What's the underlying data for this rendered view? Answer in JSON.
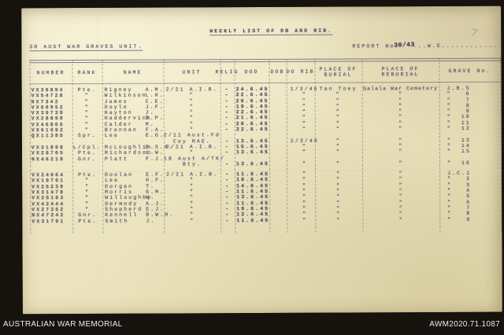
{
  "theme": {
    "bg": "#16120e",
    "paper": "#ebe3bd",
    "ink": "#524d68",
    "footer-text": "#ececec"
  },
  "footer": {
    "institution": "AUSTRALIAN WAR MEMORIAL",
    "accession": "AWM2020.71.1087"
  },
  "document": {
    "title": "WEEKLY LIST OF DB AND RIB.",
    "unit_heading": "30 AUST WAR GRAVES UNIT.",
    "report_label": "REPORT No",
    "report_number": "30/43",
    "report_suffix": "...W.E............",
    "pencil_mark": "7",
    "columns": [
      {
        "l1": "NUMBER"
      },
      {
        "l1": "RANK"
      },
      {
        "l1": "NAME"
      },
      {
        "l1": "UNIT"
      },
      {
        "l1": "RELIG"
      },
      {
        "l1": "DOD"
      },
      {
        "l1": "DOB"
      },
      {
        "l1": "DO RIB"
      },
      {
        "l1": "PLACE OF",
        "l2": "BURIAL"
      },
      {
        "l1": "PLACE OF",
        "l2": "REBURIAL"
      },
      {
        "l1": "GRAVE No."
      }
    ],
    "rows": [
      {
        "number": "VX30894",
        "rank": "Pte.",
        "name": "Rigney",
        "initials": "A.M.",
        "unit": "2/21 A.I.B.",
        "relig": "-",
        "dod": "24.6.45",
        "dob": "",
        "dorib": "1/3/46",
        "burial": "Tan Toey",
        "reburial": "Galala War Cemetery",
        "grave_prefix": "J.B.",
        "grave_num": "5"
      },
      {
        "number": "VX54728",
        "rank": "\"",
        "name": "Wilkinson",
        "initials": "L.H.",
        "unit": "\"",
        "relig": "-",
        "dod": "22.6.45",
        "dob": "",
        "dorib": "\"",
        "burial": "\"",
        "reburial": "\"",
        "grave_prefix": "\"",
        "grave_num": "6"
      },
      {
        "number": "NX7342",
        "rank": "\"",
        "name": "James",
        "initials": "C.E.",
        "unit": "\"",
        "relig": "-",
        "dod": "20.6.45",
        "dob": "",
        "dorib": "\"",
        "burial": "\"",
        "reburial": "\"",
        "grave_prefix": "\"",
        "grave_num": "7"
      },
      {
        "number": "VX60952",
        "rank": "\"",
        "name": "Doyle",
        "initials": "J.F.",
        "unit": "\"",
        "relig": "-",
        "dod": "19.6.45",
        "dob": "",
        "dorib": "\"",
        "burial": "\"",
        "reburial": "\"",
        "grave_prefix": "\"",
        "grave_num": "8"
      },
      {
        "number": "VX39739",
        "rank": "\"",
        "name": "Hayton",
        "initials": "J.",
        "unit": "\"",
        "relig": "-",
        "dod": "22.6.45",
        "dob": "",
        "dorib": "\"",
        "burial": "\"",
        "reburial": "\"",
        "grave_prefix": "\"",
        "grave_num": "9"
      },
      {
        "number": "VX28899",
        "rank": "\"",
        "name": "Haddervick",
        "initials": "B.P.",
        "unit": "\"",
        "relig": "-",
        "dod": "21.6.45",
        "dob": "",
        "dorib": "\"",
        "burial": "\"",
        "reburial": "\"",
        "grave_prefix": "\"",
        "grave_num": "10"
      },
      {
        "number": "VX46865",
        "rank": "\"",
        "name": "Calder",
        "initials": "M.",
        "unit": "\"",
        "relig": "-",
        "dod": "20.6.45",
        "dob": "",
        "dorib": "\"",
        "burial": "\"",
        "reburial": "\"",
        "grave_prefix": "\"",
        "grave_num": "11"
      },
      {
        "number": "VX61692",
        "rank": "\"",
        "name": "Brennan",
        "initials": "F.A.",
        "unit": "\"",
        "relig": "-",
        "dod": "22.6.45",
        "dob": "",
        "dorib": "\"",
        "burial": "\"",
        "reburial": "\"",
        "grave_prefix": "\"",
        "grave_num": "12"
      },
      {
        "number": "QX11385",
        "rank": "Spr.",
        "name": "Lee",
        "initials": "E.G.",
        "unit": "2/11 Aust.Fd",
        "unit2": "Coy RAE.",
        "relig": "-",
        "dod": "13.6.45",
        "dob": "",
        "dorib": "2/3/46",
        "burial": "\"",
        "reburial": "\"",
        "grave_prefix": "\"",
        "grave_num": "13",
        "two_line": true
      },
      {
        "number": "VX31898",
        "rank": "L/Cpl.",
        "name": "McLoughlin",
        "initials": "B.S.A.",
        "unit": "2/21 A.I.B.",
        "relig": "-",
        "dod": "15.6.45",
        "dob": "",
        "dorib": "\"",
        "burial": "\"",
        "reburial": "\"",
        "grave_prefix": "\"",
        "grave_num": "14"
      },
      {
        "number": "VX28705",
        "rank": "Pte.",
        "name": "Richardson",
        "initials": "L.W.",
        "unit": "\"",
        "relig": "-",
        "dod": "13.6.45",
        "dob": "",
        "dorib": "\"",
        "burial": "\"",
        "reburial": "\"",
        "grave_prefix": "\"",
        "grave_num": "15"
      },
      {
        "number": "NX46218",
        "rank": "Gnr.",
        "name": "Platt",
        "initials": "F.J.",
        "unit": "18 Aust A/TK/",
        "unit2": "Bty.",
        "relig": "-",
        "dod": "13.6.45",
        "dob": "",
        "dorib": "\"",
        "burial": "\"",
        "reburial": "\"",
        "grave_prefix": "\"",
        "grave_num": "16",
        "two_line": true
      },
      {
        "number": "VX24064",
        "rank": "Pte.",
        "name": "Doolan",
        "initials": "E.F.",
        "unit": "2/21 A.I.B.",
        "relig": "-",
        "dod": "11.6.45",
        "dob": "",
        "dorib": "\"",
        "burial": "\"",
        "reburial": "\"",
        "grave_prefix": "J.C.",
        "grave_num": "1",
        "gap_before": true
      },
      {
        "number": "VX19761",
        "rank": "\"",
        "name": "Lee",
        "initials": "H.F.",
        "unit": "\"",
        "relig": "-",
        "dod": "10.6.45",
        "dob": "",
        "dorib": "\"",
        "burial": "\"",
        "reburial": "\"",
        "grave_prefix": "\"",
        "grave_num": "2"
      },
      {
        "number": "VX25239",
        "rank": "\"",
        "name": "Dorgan",
        "initials": "T.",
        "unit": "\"",
        "relig": "-",
        "dod": "14.6.45",
        "dob": "",
        "dorib": "\"",
        "burial": "\"",
        "reburial": "\"",
        "grave_prefix": "\"",
        "grave_num": "3"
      },
      {
        "number": "VX31478",
        "rank": "\"",
        "name": "Morris",
        "initials": "G.M.",
        "unit": "\"",
        "relig": "-",
        "dod": "11.6.45",
        "dob": "",
        "dorib": "\"",
        "burial": "\"",
        "reburial": "\"",
        "grave_prefix": "\"",
        "grave_num": "4"
      },
      {
        "number": "VX25183",
        "rank": "\"",
        "name": "Willoughby",
        "initials": "W.",
        "unit": "\"",
        "relig": "-",
        "dod": "13.6.45",
        "dob": "",
        "dorib": "\"",
        "burial": "\"",
        "reburial": "\"",
        "grave_prefix": "\"",
        "grave_num": "5"
      },
      {
        "number": "VX42444",
        "rank": "\"",
        "name": "Dermody",
        "initials": "A.J.",
        "unit": "\"",
        "relig": "-",
        "dod": "11.6.45",
        "dob": "",
        "dorib": "\"",
        "burial": "\"",
        "reburial": "\"",
        "grave_prefix": "\"",
        "grave_num": "6"
      },
      {
        "number": "VX27352",
        "rank": "\"",
        "name": "Shepherd",
        "initials": "E.J.",
        "unit": "\"",
        "relig": "-",
        "dod": "19.6.45",
        "dob": "",
        "dorib": "\"",
        "burial": "\"",
        "reburial": "\"",
        "grave_prefix": "\"",
        "grave_num": "7"
      },
      {
        "number": "NX47242",
        "rank": "Gnr.",
        "name": "Kennell",
        "initials": "B.W.H.",
        "unit": "\"",
        "relig": "-",
        "dod": "12.6.45",
        "dob": "",
        "dorib": "\"",
        "burial": "\"",
        "reburial": "\"",
        "grave_prefix": "\"",
        "grave_num": "8"
      },
      {
        "number": "VX31791",
        "rank": "Pte.",
        "name": "Smith",
        "initials": "J.",
        "unit": "\"",
        "relig": "-",
        "dod": "11.6.45",
        "dob": "",
        "dorib": "\"",
        "burial": "\"",
        "reburial": "\"",
        "grave_prefix": "\"",
        "grave_num": "9"
      }
    ]
  }
}
